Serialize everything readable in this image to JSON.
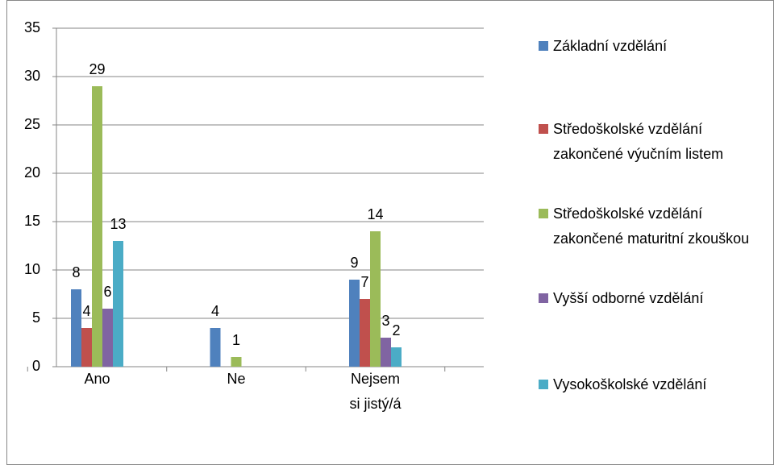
{
  "chart_data": {
    "type": "bar",
    "categories": [
      "Ano",
      "Ne",
      "Nejsem si jistý/á"
    ],
    "series": [
      {
        "name": "Základní vzdělání",
        "color": "#4f81bd",
        "values": [
          8,
          4,
          9
        ]
      },
      {
        "name": "Středoškolské vzdělání zakončené výučním listem",
        "color": "#c0504d",
        "values": [
          4,
          null,
          7
        ]
      },
      {
        "name": "Středoškolské vzdělání zakončené maturitní zkouškou",
        "color": "#9bbb59",
        "values": [
          29,
          1,
          14
        ]
      },
      {
        "name": "Vyšší odborné vzdělání",
        "color": "#8064a2",
        "values": [
          6,
          null,
          3
        ]
      },
      {
        "name": "Vysokoškolské vzdělání",
        "color": "#4bacc6",
        "values": [
          13,
          null,
          2
        ]
      }
    ],
    "ylim": [
      0,
      35
    ],
    "yticks": [
      0,
      5,
      10,
      15,
      20,
      25,
      30,
      35
    ],
    "grid": true,
    "legend": "right"
  }
}
